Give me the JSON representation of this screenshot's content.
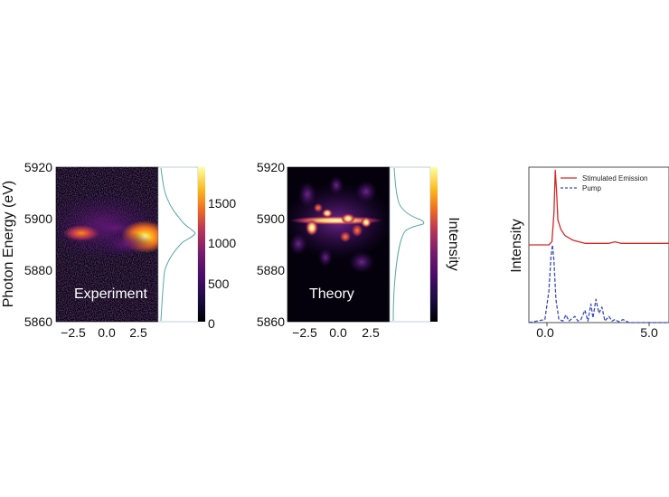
{
  "chart_data": [
    {
      "type": "heatmap",
      "panel_label": "Experiment",
      "ylabel": "Photon Energy (eV)",
      "yticks": [
        "5920",
        "5900",
        "5880",
        "5860"
      ],
      "xticks": [
        "−2.5",
        "0.0",
        "2.5"
      ],
      "x_values": [
        -2.5,
        0.0,
        2.5
      ],
      "xlim": [
        -4.5,
        4.5
      ],
      "ylim": [
        5860,
        5920
      ],
      "colorscale": "inferno",
      "colorbar_ticks": [
        "1500",
        "1000",
        "500",
        "0"
      ],
      "colorbar_values": [
        1500,
        1000,
        500,
        0
      ],
      "colorbar_range": [
        0,
        1900
      ],
      "projection_peak_energy": 5893
    },
    {
      "type": "heatmap",
      "panel_label": "Theory",
      "yticks": [
        "5920",
        "5900",
        "5880",
        "5860"
      ],
      "xticks": [
        "−2.5",
        "0.0",
        "2.5"
      ],
      "x_values": [
        -2.5,
        0.0,
        2.5
      ],
      "xlim": [
        -4.5,
        4.5
      ],
      "ylim": [
        5860,
        5920
      ],
      "colorscale": "inferno",
      "colorbar_label": "Intensity",
      "projection_peak_energy": 5898
    },
    {
      "type": "line",
      "ylabel": "Intensity",
      "xticks": [
        "0.0",
        "5.0"
      ],
      "x_values": [
        0.0,
        5.0
      ],
      "xlim": [
        -1,
        6
      ],
      "legend_position": "top-right",
      "series": [
        {
          "name": "Stimulated Emission",
          "color": "#d62728",
          "style": "solid",
          "x": [
            -1.0,
            0.0,
            0.15,
            0.25,
            0.32,
            0.38,
            0.45,
            0.6,
            0.8,
            1.2,
            1.8,
            2.5,
            3.0,
            3.3,
            3.6,
            4.5,
            6.0
          ],
          "y": [
            0.5,
            0.5,
            0.52,
            0.7,
            0.98,
            0.85,
            0.66,
            0.6,
            0.56,
            0.53,
            0.51,
            0.51,
            0.51,
            0.52,
            0.51,
            0.51,
            0.51
          ]
        },
        {
          "name": "Pump",
          "color": "#3b4cc0",
          "style": "dashed",
          "x": [
            -1.0,
            -0.2,
            0.0,
            0.1,
            0.18,
            0.25,
            0.35,
            0.5,
            0.7,
            0.85,
            1.0,
            1.3,
            1.45,
            1.6,
            1.8,
            1.95,
            2.1,
            2.2,
            2.35,
            2.5,
            2.65,
            2.8,
            3.0,
            3.15,
            3.3,
            3.5,
            3.7,
            4.0,
            6.0
          ],
          "y": [
            0.0,
            0.02,
            0.2,
            0.42,
            0.5,
            0.4,
            0.15,
            0.02,
            0.01,
            0.05,
            0.01,
            0.04,
            0.01,
            0.02,
            0.08,
            0.01,
            0.12,
            0.03,
            0.15,
            0.06,
            0.1,
            0.01,
            0.04,
            0.01,
            0.02,
            0.005,
            0.02,
            0.0,
            0.0
          ]
        }
      ]
    }
  ]
}
